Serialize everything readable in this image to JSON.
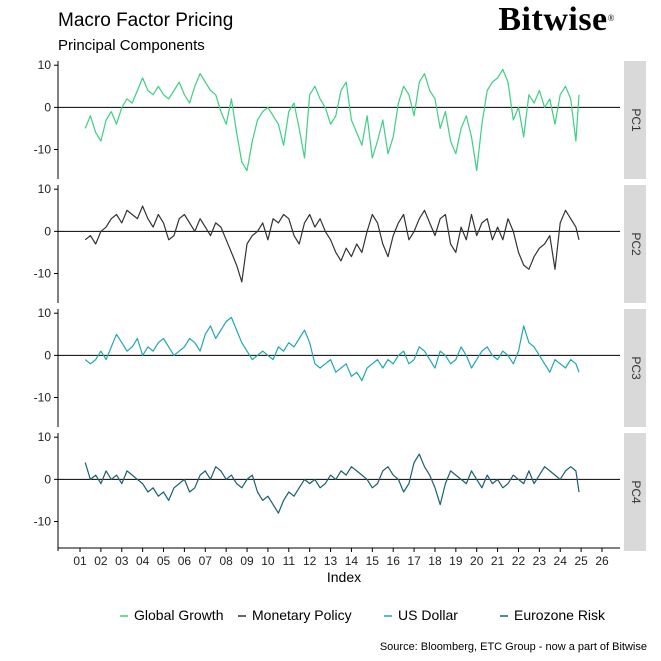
{
  "header": {
    "title": "Macro Factor Pricing",
    "subtitle": "Principal Components",
    "logo_text": "Bitwise",
    "logo_mark": "®"
  },
  "footer": {
    "source": "Source: Bloomberg, ETC Group - now a part of Bitwise"
  },
  "chart_data": {
    "type": "line",
    "xlabel": "Index",
    "x_ticks": [
      "01",
      "02",
      "03",
      "04",
      "05",
      "06",
      "07",
      "08",
      "09",
      "10",
      "11",
      "12",
      "13",
      "14",
      "15",
      "16",
      "17",
      "18",
      "19",
      "20",
      "21",
      "22",
      "23",
      "24",
      "25",
      "26"
    ],
    "xlim": [
      2001.0,
      2026.0
    ],
    "ylim": [
      -17,
      11
    ],
    "y_ticks": [
      10,
      0,
      -10
    ],
    "grid": false,
    "legend_position": "bottom",
    "panel_label_background": "#d9d9d9",
    "series": [
      {
        "name": "Global Growth",
        "panel": "PC1",
        "color": "#3ecf84",
        "x": [
          2001.25,
          2001.5,
          2001.75,
          2002.0,
          2002.25,
          2002.5,
          2002.75,
          2003.0,
          2003.25,
          2003.5,
          2003.75,
          2004.0,
          2004.25,
          2004.5,
          2004.75,
          2005.0,
          2005.25,
          2005.5,
          2005.75,
          2006.0,
          2006.25,
          2006.5,
          2006.75,
          2007.0,
          2007.25,
          2007.5,
          2007.75,
          2008.0,
          2008.25,
          2008.5,
          2008.75,
          2009.0,
          2009.25,
          2009.5,
          2009.75,
          2010.0,
          2010.25,
          2010.5,
          2010.75,
          2011.0,
          2011.25,
          2011.5,
          2011.75,
          2012.0,
          2012.25,
          2012.5,
          2012.75,
          2013.0,
          2013.25,
          2013.5,
          2013.75,
          2014.0,
          2014.25,
          2014.5,
          2014.75,
          2015.0,
          2015.25,
          2015.5,
          2015.75,
          2016.0,
          2016.25,
          2016.5,
          2016.75,
          2017.0,
          2017.25,
          2017.5,
          2017.75,
          2018.0,
          2018.25,
          2018.5,
          2018.75,
          2019.0,
          2019.25,
          2019.5,
          2019.75,
          2020.0,
          2020.25,
          2020.5,
          2020.75,
          2021.0,
          2021.25,
          2021.5,
          2021.75,
          2022.0,
          2022.25,
          2022.5,
          2022.75,
          2023.0,
          2023.25,
          2023.5,
          2023.75,
          2024.0,
          2024.25,
          2024.5,
          2024.75,
          2024.9
        ],
        "values": [
          -5,
          -2,
          -6,
          -8,
          -3,
          -1,
          -4,
          0,
          2,
          1,
          4,
          7,
          4,
          3,
          5,
          3,
          2,
          4,
          6,
          3,
          1,
          5,
          8,
          6,
          4,
          3,
          -1,
          -4,
          2,
          -6,
          -13,
          -15,
          -8,
          -3,
          -1,
          0,
          -2,
          -4,
          -9,
          -1,
          1,
          -5,
          -12,
          3,
          5,
          2,
          0,
          -4,
          -2,
          4,
          6,
          -3,
          -6,
          -9,
          -2,
          -12,
          -8,
          -3,
          -11,
          -7,
          1,
          5,
          3,
          -2,
          6,
          8,
          4,
          2,
          -5,
          -1,
          -8,
          -11,
          -5,
          -2,
          -7,
          -15,
          -4,
          4,
          6,
          7,
          9,
          6,
          -3,
          0,
          -7,
          3,
          1,
          4,
          0,
          2,
          -4,
          3,
          5,
          2,
          -8,
          3
        ]
      },
      {
        "name": "Monetary Policy",
        "panel": "PC2",
        "color": "#333333",
        "x": [
          2001.25,
          2001.5,
          2001.75,
          2002.0,
          2002.25,
          2002.5,
          2002.75,
          2003.0,
          2003.25,
          2003.5,
          2003.75,
          2004.0,
          2004.25,
          2004.5,
          2004.75,
          2005.0,
          2005.25,
          2005.5,
          2005.75,
          2006.0,
          2006.25,
          2006.5,
          2006.75,
          2007.0,
          2007.25,
          2007.5,
          2007.75,
          2008.0,
          2008.25,
          2008.5,
          2008.75,
          2009.0,
          2009.25,
          2009.5,
          2009.75,
          2010.0,
          2010.25,
          2010.5,
          2010.75,
          2011.0,
          2011.25,
          2011.5,
          2011.75,
          2012.0,
          2012.25,
          2012.5,
          2012.75,
          2013.0,
          2013.25,
          2013.5,
          2013.75,
          2014.0,
          2014.25,
          2014.5,
          2014.75,
          2015.0,
          2015.25,
          2015.5,
          2015.75,
          2016.0,
          2016.25,
          2016.5,
          2016.75,
          2017.0,
          2017.25,
          2017.5,
          2017.75,
          2018.0,
          2018.25,
          2018.5,
          2018.75,
          2019.0,
          2019.25,
          2019.5,
          2019.75,
          2020.0,
          2020.25,
          2020.5,
          2020.75,
          2021.0,
          2021.25,
          2021.5,
          2021.75,
          2022.0,
          2022.25,
          2022.5,
          2022.75,
          2023.0,
          2023.25,
          2023.5,
          2023.75,
          2024.0,
          2024.25,
          2024.5,
          2024.75,
          2024.9
        ],
        "values": [
          -2,
          -1,
          -3,
          0,
          1,
          3,
          4,
          2,
          5,
          4,
          3,
          6,
          3,
          1,
          4,
          2,
          -2,
          -1,
          3,
          4,
          2,
          0,
          3,
          1,
          -1,
          2,
          1,
          -2,
          -5,
          -8,
          -12,
          -3,
          -1,
          0,
          2,
          -2,
          3,
          2,
          4,
          3,
          -1,
          -3,
          2,
          4,
          1,
          3,
          0,
          -2,
          -5,
          -7,
          -4,
          -6,
          -3,
          -5,
          0,
          4,
          2,
          -3,
          -6,
          -1,
          2,
          4,
          -2,
          0,
          3,
          5,
          2,
          -1,
          3,
          4,
          -3,
          -5,
          1,
          -2,
          4,
          -1,
          2,
          3,
          -2,
          1,
          -2,
          3,
          0,
          -5,
          -8,
          -9,
          -6,
          -4,
          -3,
          -1,
          -9,
          2,
          5,
          3,
          1,
          -2
        ]
      },
      {
        "name": "US Dollar",
        "panel": "PC3",
        "color": "#21a7b0",
        "x": [
          2001.25,
          2001.5,
          2001.75,
          2002.0,
          2002.25,
          2002.5,
          2002.75,
          2003.0,
          2003.25,
          2003.5,
          2003.75,
          2004.0,
          2004.25,
          2004.5,
          2004.75,
          2005.0,
          2005.25,
          2005.5,
          2005.75,
          2006.0,
          2006.25,
          2006.5,
          2006.75,
          2007.0,
          2007.25,
          2007.5,
          2007.75,
          2008.0,
          2008.25,
          2008.5,
          2008.75,
          2009.0,
          2009.25,
          2009.5,
          2009.75,
          2010.0,
          2010.25,
          2010.5,
          2010.75,
          2011.0,
          2011.25,
          2011.5,
          2011.75,
          2012.0,
          2012.25,
          2012.5,
          2012.75,
          2013.0,
          2013.25,
          2013.5,
          2013.75,
          2014.0,
          2014.25,
          2014.5,
          2014.75,
          2015.0,
          2015.25,
          2015.5,
          2015.75,
          2016.0,
          2016.25,
          2016.5,
          2016.75,
          2017.0,
          2017.25,
          2017.5,
          2017.75,
          2018.0,
          2018.25,
          2018.5,
          2018.75,
          2019.0,
          2019.25,
          2019.5,
          2019.75,
          2020.0,
          2020.25,
          2020.5,
          2020.75,
          2021.0,
          2021.25,
          2021.5,
          2021.75,
          2022.0,
          2022.25,
          2022.5,
          2022.75,
          2023.0,
          2023.25,
          2023.5,
          2023.75,
          2024.0,
          2024.25,
          2024.5,
          2024.75,
          2024.9
        ],
        "values": [
          -1,
          -2,
          -1,
          1,
          -1,
          2,
          5,
          3,
          1,
          2,
          4,
          0,
          2,
          1,
          3,
          4,
          2,
          0,
          1,
          2,
          4,
          3,
          1,
          5,
          7,
          4,
          6,
          8,
          9,
          6,
          3,
          1,
          -1,
          0,
          1,
          0,
          -1,
          2,
          1,
          3,
          2,
          4,
          6,
          3,
          -2,
          -3,
          -2,
          -1,
          -4,
          -3,
          -2,
          -5,
          -4,
          -6,
          -3,
          -2,
          -1,
          -3,
          -1,
          -2,
          0,
          1,
          -2,
          -1,
          2,
          1,
          -1,
          -3,
          1,
          0,
          -2,
          -1,
          2,
          0,
          -3,
          -1,
          1,
          2,
          0,
          -1,
          1,
          0,
          -2,
          1,
          7,
          3,
          2,
          0,
          -2,
          -4,
          -1,
          -2,
          -3,
          -1,
          -2,
          -4
        ]
      },
      {
        "name": "Eurozone Risk",
        "panel": "PC4",
        "color": "#1a5f6e",
        "x": [
          2001.25,
          2001.5,
          2001.75,
          2002.0,
          2002.25,
          2002.5,
          2002.75,
          2003.0,
          2003.25,
          2003.5,
          2003.75,
          2004.0,
          2004.25,
          2004.5,
          2004.75,
          2005.0,
          2005.25,
          2005.5,
          2005.75,
          2006.0,
          2006.25,
          2006.5,
          2006.75,
          2007.0,
          2007.25,
          2007.5,
          2007.75,
          2008.0,
          2008.25,
          2008.5,
          2008.75,
          2009.0,
          2009.25,
          2009.5,
          2009.75,
          2010.0,
          2010.25,
          2010.5,
          2010.75,
          2011.0,
          2011.25,
          2011.5,
          2011.75,
          2012.0,
          2012.25,
          2012.5,
          2012.75,
          2013.0,
          2013.25,
          2013.5,
          2013.75,
          2014.0,
          2014.25,
          2014.5,
          2014.75,
          2015.0,
          2015.25,
          2015.5,
          2015.75,
          2016.0,
          2016.25,
          2016.5,
          2016.75,
          2017.0,
          2017.25,
          2017.5,
          2017.75,
          2018.0,
          2018.25,
          2018.5,
          2018.75,
          2019.0,
          2019.25,
          2019.5,
          2019.75,
          2020.0,
          2020.25,
          2020.5,
          2020.75,
          2021.0,
          2021.25,
          2021.5,
          2021.75,
          2022.0,
          2022.25,
          2022.5,
          2022.75,
          2023.0,
          2023.25,
          2023.5,
          2023.75,
          2024.0,
          2024.25,
          2024.5,
          2024.75,
          2024.9
        ],
        "values": [
          4,
          0,
          1,
          -1,
          2,
          0,
          1,
          -1,
          2,
          1,
          0,
          -1,
          -3,
          -2,
          -4,
          -3,
          -5,
          -2,
          -1,
          0,
          -3,
          -2,
          1,
          2,
          0,
          3,
          2,
          0,
          1,
          -1,
          -2,
          0,
          1,
          -3,
          -5,
          -4,
          -6,
          -8,
          -5,
          -3,
          -4,
          -2,
          0,
          -1,
          0,
          -2,
          -1,
          1,
          0,
          2,
          1,
          3,
          2,
          1,
          0,
          -2,
          -1,
          2,
          3,
          1,
          0,
          -3,
          -1,
          4,
          6,
          3,
          1,
          -2,
          -6,
          -1,
          2,
          1,
          0,
          -1,
          2,
          0,
          -2,
          1,
          -1,
          0,
          -2,
          -1,
          1,
          0,
          -1,
          2,
          -1,
          1,
          3,
          2,
          1,
          0,
          2,
          3,
          2,
          -3
        ]
      }
    ]
  }
}
